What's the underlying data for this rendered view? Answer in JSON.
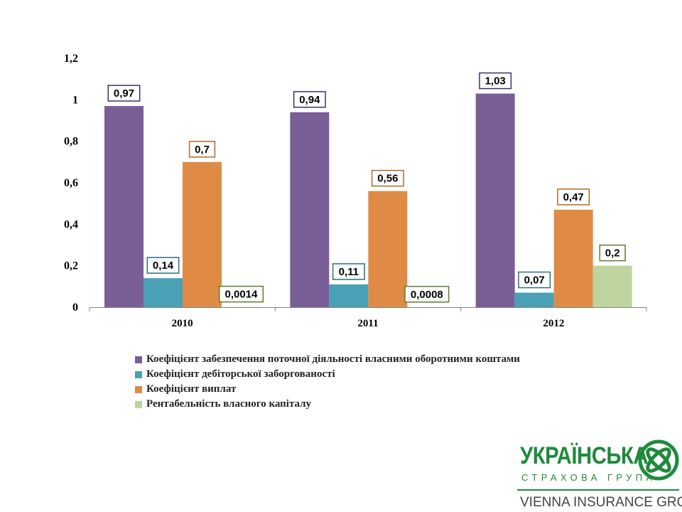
{
  "colors": {
    "series_1": "#7a5e97",
    "series_2": "#4aa0b5",
    "series_3": "#df8b45",
    "series_4": "#bed49c",
    "axis": "#868686",
    "brand_green": "#1e8a3c"
  },
  "chart_data": {
    "type": "bar",
    "categories": [
      "2010",
      "2011",
      "2012"
    ],
    "series": [
      {
        "name": "Коефіцієнт забезпечення поточної діяльності власними оборотними коштами",
        "values": [
          0.97,
          0.94,
          1.03
        ],
        "labels": [
          "0,97",
          "0,94",
          "1,03"
        ],
        "color": "#7a5e97",
        "border": "#3f3163"
      },
      {
        "name": "Коефіцієнт дебіторської заборгованості",
        "values": [
          0.14,
          0.11,
          0.07
        ],
        "labels": [
          "0,14",
          "0,11",
          "0,07"
        ],
        "color": "#4aa0b5",
        "border": "#2a6f82"
      },
      {
        "name": "Коефіцієнт виплат",
        "values": [
          0.7,
          0.56,
          0.47
        ],
        "labels": [
          "0,7",
          "0,56",
          "0,47"
        ],
        "color": "#df8b45",
        "border": "#b06a2a"
      },
      {
        "name": "Рентабельність власного капіталу",
        "values": [
          0.0014,
          0.0008,
          0.2
        ],
        "labels": [
          "0,0014",
          "0,0008",
          "0,2"
        ],
        "color": "#bed49c",
        "border": "#5f7a33"
      }
    ],
    "yticks": [
      0,
      0.2,
      0.4,
      0.6,
      0.8,
      1,
      1.2
    ],
    "ytick_labels": [
      "0",
      "0,2",
      "0,4",
      "0,6",
      "0,8",
      "1",
      "1,2"
    ],
    "ylim": [
      0,
      1.2
    ],
    "grid": false,
    "legend_position": "bottom",
    "title": "",
    "xlabel": "",
    "ylabel": ""
  },
  "logo": {
    "name": "УКРАЇНСЬКА",
    "subtitle": "СТРАХОВА ГРУПА",
    "group": "VIENNA INSURANCE GROUP"
  }
}
